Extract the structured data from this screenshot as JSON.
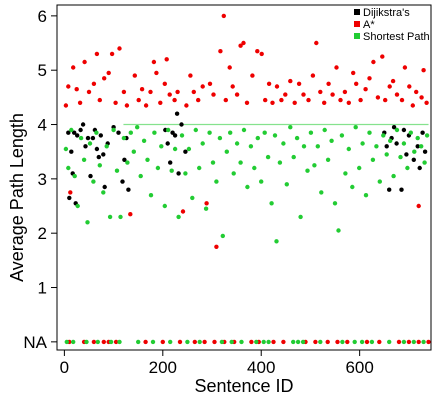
{
  "chart_data": {
    "type": "scatter",
    "xlabel": "Sentence ID",
    "ylabel": "Average Path Length",
    "xlim": [
      -15,
      745
    ],
    "ylim": [
      -0.15,
      6.2
    ],
    "x_ticks": [
      {
        "value": 0,
        "label": "0"
      },
      {
        "value": 200,
        "label": "200"
      },
      {
        "value": 400,
        "label": "400"
      },
      {
        "value": 600,
        "label": "600"
      }
    ],
    "y_ticks": [
      {
        "value": 0,
        "label": "NA"
      },
      {
        "value": 1,
        "label": "1"
      },
      {
        "value": 2,
        "label": "2"
      },
      {
        "value": 3,
        "label": "3"
      },
      {
        "value": 4,
        "label": "4"
      },
      {
        "value": 5,
        "label": "5"
      },
      {
        "value": 6,
        "label": "6"
      }
    ],
    "na_value_note": "NA",
    "legend_position": "top-right",
    "series": [
      {
        "name": "Dijikstra's",
        "color": "#000000",
        "points": [
          [
            8,
            3.85
          ],
          [
            10,
            2.65
          ],
          [
            14,
            3.5
          ],
          [
            17,
            3.1
          ],
          [
            20,
            3.85
          ],
          [
            23,
            2.55
          ],
          [
            26,
            3.8
          ],
          [
            33,
            3.9
          ],
          [
            38,
            4.0
          ],
          [
            43,
            3.6
          ],
          [
            48,
            3.75
          ],
          [
            53,
            3.05
          ],
          [
            58,
            3.75
          ],
          [
            62,
            3.9
          ],
          [
            66,
            3.55
          ],
          [
            70,
            3.4
          ],
          [
            74,
            3.8
          ],
          [
            79,
            3.45
          ],
          [
            82,
            2.85
          ],
          [
            88,
            3.65
          ],
          [
            100,
            3.95
          ],
          [
            110,
            3.85
          ],
          [
            118,
            2.95
          ],
          [
            122,
            3.35
          ],
          [
            126,
            3.75
          ],
          [
            130,
            2.8
          ],
          [
            205,
            3.9
          ],
          [
            210,
            3.65
          ],
          [
            215,
            3.3
          ],
          [
            220,
            3.85
          ],
          [
            225,
            3.8
          ],
          [
            229,
            4.2
          ],
          [
            232,
            3.1
          ],
          [
            238,
            4.0
          ],
          [
            246,
            3.5
          ],
          [
            650,
            3.85
          ],
          [
            655,
            3.6
          ],
          [
            660,
            2.8
          ],
          [
            665,
            3.75
          ],
          [
            670,
            3.95
          ],
          [
            675,
            3.65
          ],
          [
            685,
            2.8
          ],
          [
            690,
            3.9
          ],
          [
            695,
            3.45
          ],
          [
            700,
            3.8
          ],
          [
            710,
            3.35
          ],
          [
            718,
            3.6
          ],
          [
            722,
            3.2
          ],
          [
            728,
            3.85
          ],
          [
            733,
            3.5
          ]
        ]
      },
      {
        "name": "A*",
        "color": "#ee0000",
        "points": [
          [
            3,
            4.35
          ],
          [
            8,
            4.7
          ],
          [
            12,
            2.75
          ],
          [
            18,
            5.05
          ],
          [
            25,
            4.65
          ],
          [
            32,
            4.4
          ],
          [
            41,
            5.15
          ],
          [
            50,
            4.6
          ],
          [
            60,
            4.75
          ],
          [
            66,
            5.3
          ],
          [
            72,
            4.45
          ],
          [
            81,
            4.85
          ],
          [
            90,
            4.95
          ],
          [
            97,
            5.3
          ],
          [
            104,
            4.4
          ],
          [
            112,
            5.4
          ],
          [
            121,
            4.6
          ],
          [
            127,
            4.35
          ],
          [
            134,
            2.35
          ],
          [
            143,
            4.9
          ],
          [
            151,
            4.45
          ],
          [
            158,
            4.65
          ],
          [
            166,
            4.35
          ],
          [
            175,
            4.6
          ],
          [
            182,
            5.15
          ],
          [
            187,
            4.95
          ],
          [
            195,
            4.4
          ],
          [
            204,
            4.75
          ],
          [
            208,
            5.2
          ],
          [
            214,
            4.55
          ],
          [
            224,
            4.45
          ],
          [
            230,
            4.6
          ],
          [
            241,
            2.4
          ],
          [
            248,
            4.35
          ],
          [
            256,
            4.9
          ],
          [
            263,
            4.6
          ],
          [
            272,
            4.45
          ],
          [
            281,
            4.7
          ],
          [
            289,
            2.55
          ],
          [
            296,
            4.75
          ],
          [
            303,
            4.55
          ],
          [
            309,
            1.75
          ],
          [
            317,
            5.35
          ],
          [
            324,
            6.0
          ],
          [
            328,
            4.45
          ],
          [
            336,
            5.05
          ],
          [
            342,
            4.7
          ],
          [
            351,
            4.55
          ],
          [
            358,
            5.45
          ],
          [
            364,
            5.5
          ],
          [
            371,
            4.4
          ],
          [
            382,
            4.9
          ],
          [
            392,
            5.35
          ],
          [
            401,
            5.3
          ],
          [
            408,
            4.45
          ],
          [
            416,
            4.75
          ],
          [
            423,
            4.4
          ],
          [
            432,
            4.7
          ],
          [
            441,
            4.45
          ],
          [
            449,
            4.55
          ],
          [
            459,
            4.8
          ],
          [
            468,
            4.4
          ],
          [
            477,
            4.75
          ],
          [
            486,
            4.55
          ],
          [
            496,
            4.45
          ],
          [
            505,
            4.9
          ],
          [
            512,
            5.5
          ],
          [
            520,
            4.6
          ],
          [
            528,
            4.4
          ],
          [
            537,
            4.75
          ],
          [
            545,
            4.55
          ],
          [
            553,
            5.05
          ],
          [
            561,
            4.45
          ],
          [
            570,
            4.6
          ],
          [
            578,
            4.4
          ],
          [
            587,
            4.95
          ],
          [
            593,
            4.75
          ],
          [
            602,
            4.45
          ],
          [
            612,
            4.65
          ],
          [
            620,
            4.85
          ],
          [
            628,
            5.15
          ],
          [
            637,
            4.5
          ],
          [
            646,
            5.25
          ],
          [
            652,
            4.45
          ],
          [
            661,
            4.7
          ],
          [
            668,
            4.8
          ],
          [
            676,
            4.55
          ],
          [
            686,
            4.45
          ],
          [
            692,
            5.05
          ],
          [
            701,
            4.7
          ],
          [
            708,
            4.35
          ],
          [
            715,
            4.6
          ],
          [
            720,
            2.5
          ],
          [
            726,
            4.5
          ],
          [
            730,
            5.0
          ],
          [
            736,
            4.4
          ],
          [
            10,
            0
          ],
          [
            40,
            0
          ],
          [
            60,
            0
          ],
          [
            80,
            0
          ],
          [
            90,
            0
          ],
          [
            105,
            0
          ],
          [
            165,
            0
          ],
          [
            200,
            0
          ],
          [
            235,
            0
          ],
          [
            265,
            0
          ],
          [
            285,
            0
          ],
          [
            305,
            0
          ],
          [
            325,
            0
          ],
          [
            345,
            0
          ],
          [
            380,
            0
          ],
          [
            395,
            0
          ],
          [
            425,
            0
          ],
          [
            445,
            0
          ],
          [
            490,
            0
          ],
          [
            510,
            0
          ],
          [
            535,
            0
          ],
          [
            555,
            0
          ],
          [
            575,
            0
          ],
          [
            615,
            0
          ],
          [
            640,
            0
          ],
          [
            680,
            0
          ],
          [
            700,
            0
          ],
          [
            720,
            0
          ],
          [
            740,
            0
          ]
        ]
      },
      {
        "name": "Shortest Path",
        "color": "#22cc33",
        "points": [
          [
            3,
            3.55
          ],
          [
            8,
            3.2
          ],
          [
            14,
            3.9
          ],
          [
            21,
            3.05
          ],
          [
            27,
            2.5
          ],
          [
            34,
            3.75
          ],
          [
            40,
            3.35
          ],
          [
            47,
            2.2
          ],
          [
            52,
            3.65
          ],
          [
            59,
            2.95
          ],
          [
            65,
            3.85
          ],
          [
            72,
            3.25
          ],
          [
            79,
            2.75
          ],
          [
            86,
            3.6
          ],
          [
            93,
            2.3
          ],
          [
            100,
            3.9
          ],
          [
            107,
            3.15
          ],
          [
            114,
            2.3
          ],
          [
            121,
            3.75
          ],
          [
            128,
            3.3
          ],
          [
            135,
            3.85
          ],
          [
            141,
            3.5
          ],
          [
            148,
            3.95
          ],
          [
            155,
            3.05
          ],
          [
            162,
            3.7
          ],
          [
            169,
            3.35
          ],
          [
            176,
            2.7
          ],
          [
            183,
            3.85
          ],
          [
            190,
            3.2
          ],
          [
            197,
            3.6
          ],
          [
            204,
            2.5
          ],
          [
            211,
            3.9
          ],
          [
            218,
            3.15
          ],
          [
            225,
            3.55
          ],
          [
            232,
            2.3
          ],
          [
            239,
            3.8
          ],
          [
            246,
            3.1
          ],
          [
            253,
            3.55
          ],
          [
            260,
            2.65
          ],
          [
            267,
            3.9
          ],
          [
            274,
            3.2
          ],
          [
            281,
            3.65
          ],
          [
            288,
            2.45
          ],
          [
            295,
            3.85
          ],
          [
            302,
            3.3
          ],
          [
            309,
            2.95
          ],
          [
            316,
            3.75
          ],
          [
            322,
            1.95
          ],
          [
            330,
            3.5
          ],
          [
            337,
            3.85
          ],
          [
            344,
            3.1
          ],
          [
            351,
            3.65
          ],
          [
            358,
            3.3
          ],
          [
            365,
            3.9
          ],
          [
            372,
            2.85
          ],
          [
            379,
            3.6
          ],
          [
            386,
            3.2
          ],
          [
            393,
            3.75
          ],
          [
            400,
            2.95
          ],
          [
            407,
            3.85
          ],
          [
            414,
            3.4
          ],
          [
            421,
            2.55
          ],
          [
            428,
            3.8
          ],
          [
            431,
            1.85
          ],
          [
            438,
            3.3
          ],
          [
            445,
            3.65
          ],
          [
            452,
            2.9
          ],
          [
            459,
            3.95
          ],
          [
            466,
            3.4
          ],
          [
            473,
            3.75
          ],
          [
            480,
            2.3
          ],
          [
            487,
            3.6
          ],
          [
            494,
            3.15
          ],
          [
            501,
            3.85
          ],
          [
            508,
            3.25
          ],
          [
            515,
            3.6
          ],
          [
            522,
            2.75
          ],
          [
            529,
            3.9
          ],
          [
            536,
            3.35
          ],
          [
            543,
            3.7
          ],
          [
            550,
            2.55
          ],
          [
            557,
            2.05
          ],
          [
            564,
            3.8
          ],
          [
            571,
            3.1
          ],
          [
            578,
            3.55
          ],
          [
            585,
            2.85
          ],
          [
            592,
            3.95
          ],
          [
            599,
            3.2
          ],
          [
            606,
            3.65
          ],
          [
            613,
            2.7
          ],
          [
            620,
            3.85
          ],
          [
            627,
            3.35
          ],
          [
            634,
            3.6
          ],
          [
            641,
            2.95
          ],
          [
            648,
            3.8
          ],
          [
            655,
            3.45
          ],
          [
            662,
            3.7
          ],
          [
            669,
            3.05
          ],
          [
            676,
            3.9
          ],
          [
            683,
            3.4
          ],
          [
            690,
            3.65
          ],
          [
            697,
            3.2
          ],
          [
            704,
            3.85
          ],
          [
            711,
            3.5
          ],
          [
            718,
            3.75
          ],
          [
            725,
            3.6
          ],
          [
            732,
            3.3
          ],
          [
            737,
            3.8
          ],
          [
            5,
            0
          ],
          [
            18,
            0
          ],
          [
            45,
            0
          ],
          [
            68,
            0
          ],
          [
            95,
            0
          ],
          [
            112,
            0
          ],
          [
            150,
            0
          ],
          [
            180,
            0
          ],
          [
            215,
            0
          ],
          [
            250,
            0
          ],
          [
            275,
            0
          ],
          [
            320,
            0
          ],
          [
            340,
            0
          ],
          [
            360,
            0
          ],
          [
            390,
            0
          ],
          [
            405,
            0
          ],
          [
            415,
            0
          ],
          [
            465,
            0
          ],
          [
            475,
            0
          ],
          [
            485,
            0
          ],
          [
            520,
            0
          ],
          [
            565,
            0
          ],
          [
            590,
            0
          ],
          [
            605,
            0
          ],
          [
            625,
            0
          ],
          [
            660,
            0
          ],
          [
            690,
            0
          ],
          [
            710,
            0
          ],
          [
            730,
            0
          ]
        ]
      }
    ]
  }
}
